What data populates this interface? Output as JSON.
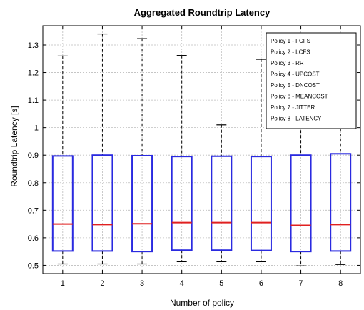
{
  "chart_data": {
    "type": "boxplot",
    "title": "Aggregated Roundtrip Latency",
    "xlabel": "Number of policy",
    "ylabel": "Roundtrip Latency [s]",
    "ylim": [
      0.47,
      1.37
    ],
    "yticks": [
      0.5,
      0.6,
      0.7,
      0.8,
      0.9,
      1,
      1.1,
      1.2,
      1.3
    ],
    "ytick_labels": [
      "0.5",
      "0.6",
      "0.7",
      "0.8",
      "0.9",
      "1",
      "1.1",
      "1.2",
      "1.3"
    ],
    "grid": true,
    "legend_position": "top-right",
    "categories": [
      "1",
      "2",
      "3",
      "4",
      "5",
      "6",
      "7",
      "8"
    ],
    "boxes": [
      {
        "min": 0.505,
        "q1": 0.552,
        "median": 0.65,
        "q3": 0.897,
        "max": 1.26
      },
      {
        "min": 0.505,
        "q1": 0.552,
        "median": 0.648,
        "q3": 0.9,
        "max": 1.34
      },
      {
        "min": 0.505,
        "q1": 0.55,
        "median": 0.651,
        "q3": 0.898,
        "max": 1.323
      },
      {
        "min": 0.513,
        "q1": 0.555,
        "median": 0.655,
        "q3": 0.895,
        "max": 1.262
      },
      {
        "min": 0.513,
        "q1": 0.555,
        "median": 0.655,
        "q3": 0.896,
        "max": 1.01
      },
      {
        "min": 0.513,
        "q1": 0.554,
        "median": 0.655,
        "q3": 0.895,
        "max": 1.248
      },
      {
        "min": 0.498,
        "q1": 0.55,
        "median": 0.645,
        "q3": 0.9,
        "max": 1.245
      },
      {
        "min": 0.503,
        "q1": 0.552,
        "median": 0.648,
        "q3": 0.905,
        "max": 1.105
      }
    ],
    "legend": [
      "Policy 1 - FCFS",
      "Policy 2 - LCFS",
      "Policy 3 - RR",
      "Policy 4 - UPCOST",
      "Policy 5 - DNCOST",
      "Policy 6 - MEANCOST",
      "Policy 7 - JITTER",
      "Policy 8 - LATENCY"
    ],
    "colors": {
      "box": "#2a2ae0",
      "median": "#e02020",
      "whisker": "#000000",
      "grid": "#bdbdbd"
    }
  }
}
